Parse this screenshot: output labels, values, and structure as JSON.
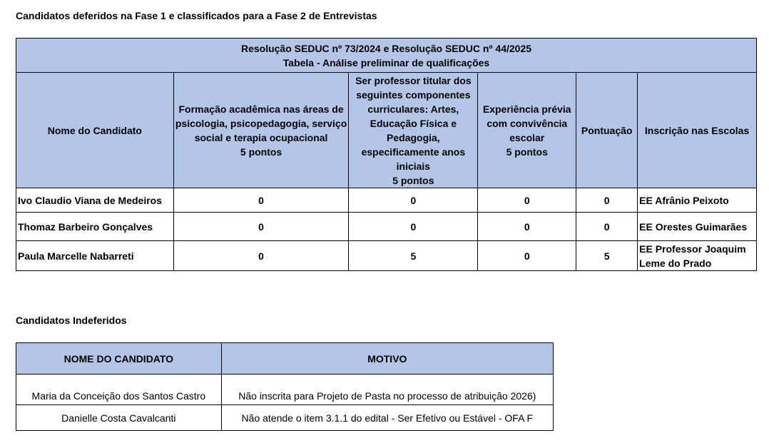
{
  "heading1": "Candidatos deferidos na Fase 1 e classificados para a Fase 2 de Entrevistas",
  "table1": {
    "title_line1": "Resolução SEDUC nº 73/2024 e Resolução SEDUC nº 44/2025",
    "title_line2": "Tabela - Análise preliminar de qualificações",
    "headers": [
      "Nome do Candidato",
      "Formação acadêmica nas áreas de psicologia, psicopedagogia, serviço social e terapia ocupacional\n5 pontos",
      "Ser professor titular dos seguintes componentes curriculares: Artes, Educação Física e Pedagogia, especificamente anos iniciais\n5 pontos",
      "Experiência prévia com convivência escolar\n5 pontos",
      "Pontuação",
      "Inscrição nas Escolas"
    ],
    "rows": [
      [
        "Ivo Claudio Viana de Medeiros",
        "0",
        "0",
        "0",
        "0",
        "EE Afrânio Peixoto"
      ],
      [
        "Thomaz Barbeiro Gonçalves",
        "0",
        "0",
        "0",
        "0",
        "EE Orestes Guimarães"
      ],
      [
        "Paula Marcelle Nabarreti",
        "0",
        "5",
        "0",
        "5",
        "EE Professor Joaquim Leme do Prado"
      ]
    ]
  },
  "heading2": "Candidatos Indeferidos",
  "table2": {
    "headers": [
      "NOME DO CANDIDATO",
      "MOTIVO"
    ],
    "rows": [
      [
        "Maria da Conceição dos Santos Castro",
        "Não inscrita para Projeto de Pasta no processo de atribuição 2026)"
      ],
      [
        "Danielle Costa Cavalcanti",
        "Não atende o item 3.1.1 do edital - Ser Efetivo ou Estável - OFA F"
      ]
    ]
  },
  "colors": {
    "header_fill": "#b4c6e7"
  }
}
